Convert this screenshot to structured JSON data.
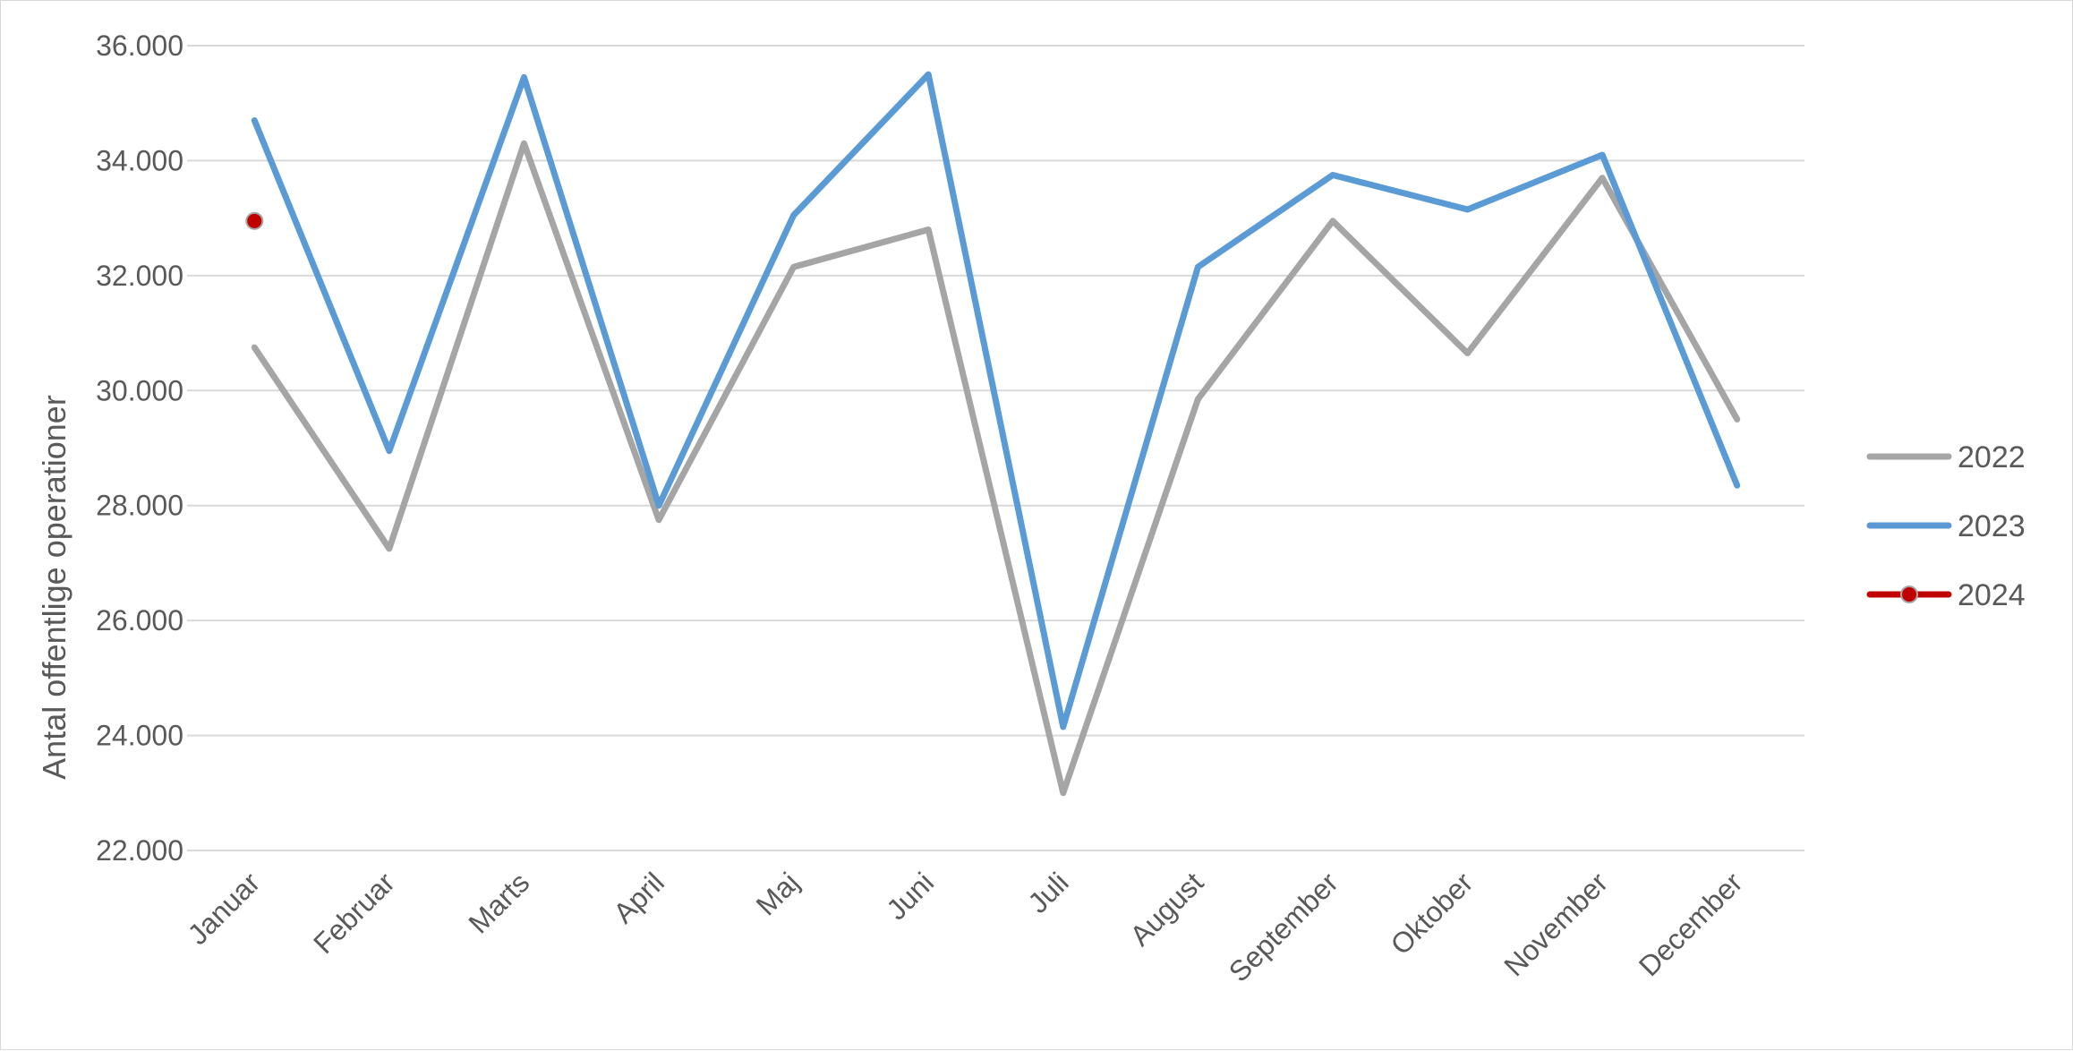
{
  "chart_data": {
    "type": "line",
    "title": "",
    "xlabel": "",
    "ylabel": "Antal offentlige operationer",
    "categories": [
      "Januar",
      "Februar",
      "Marts",
      "April",
      "Maj",
      "Juni",
      "Juli",
      "August",
      "September",
      "Oktober",
      "November",
      "December"
    ],
    "yticks": [
      "22.000",
      "24.000",
      "26.000",
      "28.000",
      "30.000",
      "32.000",
      "34.000",
      "36.000"
    ],
    "ylim": [
      22000,
      36000
    ],
    "grid": true,
    "legend_position": "right",
    "series": [
      {
        "name": "2022",
        "color": "#a5a5a5",
        "marker": false,
        "values": [
          30750,
          27250,
          34300,
          27750,
          32150,
          32800,
          23000,
          29850,
          32950,
          30650,
          33700,
          29500
        ]
      },
      {
        "name": "2023",
        "color": "#5b9bd5",
        "marker": false,
        "values": [
          34700,
          28950,
          35450,
          28000,
          33050,
          35500,
          24150,
          32150,
          33750,
          33150,
          34100,
          28350
        ]
      },
      {
        "name": "2024",
        "color": "#c00000",
        "marker": true,
        "values": [
          32950,
          null,
          null,
          null,
          null,
          null,
          null,
          null,
          null,
          null,
          null,
          null
        ]
      }
    ]
  }
}
